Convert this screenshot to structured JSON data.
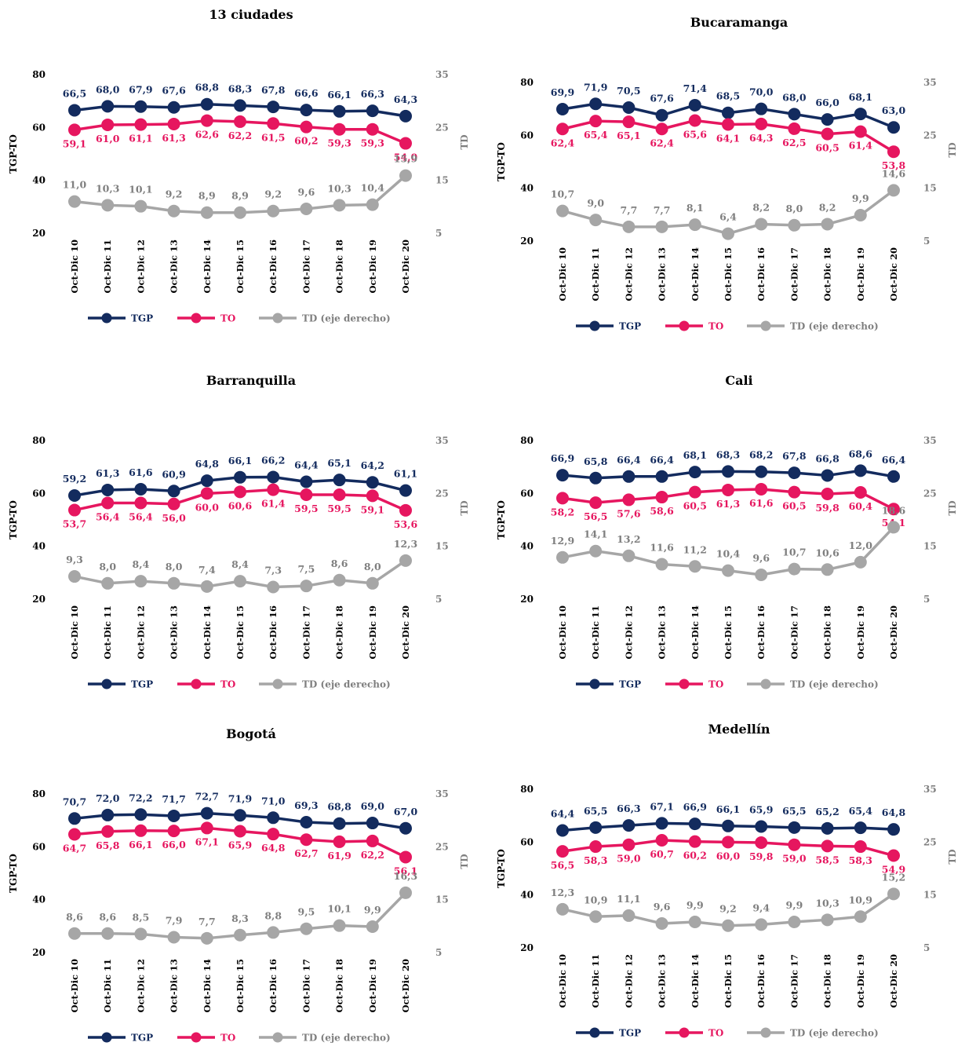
{
  "colors": {
    "TGP": "#132b5e",
    "TO": "#e6165f",
    "TD": "#a6a6a6",
    "TD_text": "#7f7f7f"
  },
  "categories": [
    "Oct-Dic 10",
    "Oct-Dic 11",
    "Oct-Dic 12",
    "Oct-Dic 13",
    "Oct-Dic 14",
    "Oct-Dic 15",
    "Oct-Dic 16",
    "Oct-Dic 17",
    "Oct-Dic 18",
    "Oct-Dic 19",
    "Oct-Dic 20"
  ],
  "legend": {
    "tgp": "TGP",
    "to": "TO",
    "td": "TD (eje derecho)"
  },
  "chart_data": [
    {
      "type": "line",
      "title": "13 ciudades",
      "ylabel_left": "TGP-TO",
      "ylabel_right": "TD",
      "yticks_left": [
        20,
        40,
        60,
        80
      ],
      "yticks_right": [
        5,
        15,
        25,
        35
      ],
      "series": [
        {
          "name": "TGP",
          "values": [
            66.5,
            68.0,
            67.9,
            67.6,
            68.8,
            68.3,
            67.8,
            66.6,
            66.1,
            66.3,
            64.3
          ],
          "labels": [
            "66,5",
            "68,0",
            "67,9",
            "67,6",
            "68,8",
            "68,3",
            "67,8",
            "66,6",
            "66,1",
            "66,3",
            "64,3"
          ]
        },
        {
          "name": "TO",
          "values": [
            59.1,
            61.0,
            61.1,
            61.3,
            62.6,
            62.2,
            61.5,
            60.2,
            59.3,
            59.3,
            54.0
          ],
          "labels": [
            "59,1",
            "61,0",
            "61,1",
            "61,3",
            "62,6",
            "62,2",
            "61,5",
            "60,2",
            "59,3",
            "59,3",
            "54,0"
          ]
        },
        {
          "name": "TD (eje derecho)",
          "values": [
            11.0,
            10.3,
            10.1,
            9.2,
            8.9,
            8.9,
            9.2,
            9.6,
            10.3,
            10.4,
            15.9
          ],
          "labels": [
            "11,0",
            "10,3",
            "10,1",
            "9,2",
            "8,9",
            "8,9",
            "9,2",
            "9,6",
            "10,3",
            "10,4",
            "15,9"
          ]
        }
      ]
    },
    {
      "type": "line",
      "title": "Bucaramanga",
      "ylabel_left": "TGP-TO",
      "ylabel_right": "TD",
      "yticks_left": [
        20,
        40,
        60,
        80
      ],
      "yticks_right": [
        5,
        15,
        25,
        35
      ],
      "series": [
        {
          "name": "TGP",
          "values": [
            69.9,
            71.9,
            70.5,
            67.6,
            71.4,
            68.5,
            70.0,
            68.0,
            66.0,
            68.1,
            63.0
          ],
          "labels": [
            "69,9",
            "71,9",
            "70,5",
            "67,6",
            "71,4",
            "68,5",
            "70,0",
            "68,0",
            "66,0",
            "68,1",
            "63,0"
          ]
        },
        {
          "name": "TO",
          "values": [
            62.4,
            65.4,
            65.1,
            62.4,
            65.6,
            64.1,
            64.3,
            62.5,
            60.5,
            61.4,
            53.8
          ],
          "labels": [
            "62,4",
            "65,4",
            "65,1",
            "62,4",
            "65,6",
            "64,1",
            "64,3",
            "62,5",
            "60,5",
            "61,4",
            "53,8"
          ]
        },
        {
          "name": "TD (eje derecho)",
          "values": [
            10.7,
            9.0,
            7.7,
            7.7,
            8.1,
            6.4,
            8.2,
            8.0,
            8.2,
            9.9,
            14.6
          ],
          "labels": [
            "10,7",
            "9,0",
            "7,7",
            "7,7",
            "8,1",
            "6,4",
            "8,2",
            "8,0",
            "8,2",
            "9,9",
            "14,6"
          ]
        }
      ]
    },
    {
      "type": "line",
      "title": "Barranquilla",
      "ylabel_left": "TGP-TO",
      "ylabel_right": "TD",
      "yticks_left": [
        20,
        40,
        60,
        80
      ],
      "yticks_right": [
        5,
        15,
        25,
        35
      ],
      "series": [
        {
          "name": "TGP",
          "values": [
            59.2,
            61.3,
            61.6,
            60.9,
            64.8,
            66.1,
            66.2,
            64.4,
            65.1,
            64.2,
            61.1
          ],
          "labels": [
            "59,2",
            "61,3",
            "61,6",
            "60,9",
            "64,8",
            "66,1",
            "66,2",
            "64,4",
            "65,1",
            "64,2",
            "61,1"
          ]
        },
        {
          "name": "TO",
          "values": [
            53.7,
            56.4,
            56.4,
            56.0,
            60.0,
            60.6,
            61.4,
            59.5,
            59.5,
            59.1,
            53.6
          ],
          "labels": [
            "53,7",
            "56,4",
            "56,4",
            "56,0",
            "60,0",
            "60,6",
            "61,4",
            "59,5",
            "59,5",
            "59,1",
            "53,6"
          ]
        },
        {
          "name": "TD (eje derecho)",
          "values": [
            9.3,
            8.0,
            8.4,
            8.0,
            7.4,
            8.4,
            7.3,
            7.5,
            8.6,
            8.0,
            12.3
          ],
          "labels": [
            "9,3",
            "8,0",
            "8,4",
            "8,0",
            "7,4",
            "8,4",
            "7,3",
            "7,5",
            "8,6",
            "8,0",
            "12,3"
          ]
        }
      ]
    },
    {
      "type": "line",
      "title": "Cali",
      "ylabel_left": "TGP-TO",
      "ylabel_right": "TD",
      "yticks_left": [
        20,
        40,
        60,
        80
      ],
      "yticks_right": [
        5,
        15,
        25,
        35
      ],
      "series": [
        {
          "name": "TGP",
          "values": [
            66.9,
            65.8,
            66.4,
            66.4,
            68.1,
            68.3,
            68.2,
            67.8,
            66.8,
            68.6,
            66.4
          ],
          "labels": [
            "66,9",
            "65,8",
            "66,4",
            "66,4",
            "68,1",
            "68,3",
            "68,2",
            "67,8",
            "66,8",
            "68,6",
            "66,4"
          ]
        },
        {
          "name": "TO",
          "values": [
            58.2,
            56.5,
            57.6,
            58.6,
            60.5,
            61.3,
            61.6,
            60.5,
            59.8,
            60.4,
            54.1
          ],
          "labels": [
            "58,2",
            "56,5",
            "57,6",
            "58,6",
            "60,5",
            "61,3",
            "61,6",
            "60,5",
            "59,8",
            "60,4",
            "54,1"
          ]
        },
        {
          "name": "TD (eje derecho)",
          "values": [
            12.9,
            14.1,
            13.2,
            11.6,
            11.2,
            10.4,
            9.6,
            10.7,
            10.6,
            12.0,
            18.6
          ],
          "labels": [
            "12,9",
            "14,1",
            "13,2",
            "11,6",
            "11,2",
            "10,4",
            "9,6",
            "10,7",
            "10,6",
            "12,0",
            "18,6"
          ]
        }
      ]
    },
    {
      "type": "line",
      "title": "Bogotá",
      "ylabel_left": "TGP-TO",
      "ylabel_right": "TD",
      "yticks_left": [
        20,
        40,
        60,
        80
      ],
      "yticks_right": [
        5,
        15,
        25,
        35
      ],
      "series": [
        {
          "name": "TGP",
          "values": [
            70.7,
            72.0,
            72.2,
            71.7,
            72.7,
            71.9,
            71.0,
            69.3,
            68.8,
            69.0,
            67.0
          ],
          "labels": [
            "70,7",
            "72,0",
            "72,2",
            "71,7",
            "72,7",
            "71,9",
            "71,0",
            "69,3",
            "68,8",
            "69,0",
            "67,0"
          ]
        },
        {
          "name": "TO",
          "values": [
            64.7,
            65.8,
            66.1,
            66.0,
            67.1,
            65.9,
            64.8,
            62.7,
            61.9,
            62.2,
            56.1
          ],
          "labels": [
            "64,7",
            "65,8",
            "66,1",
            "66,0",
            "67,1",
            "65,9",
            "64,8",
            "62,7",
            "61,9",
            "62,2",
            "56,1"
          ]
        },
        {
          "name": "TD (eje derecho)",
          "values": [
            8.6,
            8.6,
            8.5,
            7.9,
            7.7,
            8.3,
            8.8,
            9.5,
            10.1,
            9.9,
            16.3
          ],
          "labels": [
            "8,6",
            "8,6",
            "8,5",
            "7,9",
            "7,7",
            "8,3",
            "8,8",
            "9,5",
            "10,1",
            "9,9",
            "16,3"
          ]
        }
      ]
    },
    {
      "type": "line",
      "title": "Medellín",
      "ylabel_left": "TGP-TO",
      "ylabel_right": "TD",
      "yticks_left": [
        20,
        40,
        60,
        80
      ],
      "yticks_right": [
        5,
        15,
        25,
        35
      ],
      "series": [
        {
          "name": "TGP",
          "values": [
            64.4,
            65.5,
            66.3,
            67.1,
            66.9,
            66.1,
            65.9,
            65.5,
            65.2,
            65.4,
            64.8
          ],
          "labels": [
            "64,4",
            "65,5",
            "66,3",
            "67,1",
            "66,9",
            "66,1",
            "65,9",
            "65,5",
            "65,2",
            "65,4",
            "64,8"
          ]
        },
        {
          "name": "TO",
          "values": [
            56.5,
            58.3,
            59.0,
            60.7,
            60.2,
            60.0,
            59.8,
            59.0,
            58.5,
            58.3,
            54.9
          ],
          "labels": [
            "56,5",
            "58,3",
            "59,0",
            "60,7",
            "60,2",
            "60,0",
            "59,8",
            "59,0",
            "58,5",
            "58,3",
            "54,9"
          ]
        },
        {
          "name": "TD (eje derecho)",
          "values": [
            12.3,
            10.9,
            11.1,
            9.6,
            9.9,
            9.2,
            9.4,
            9.9,
            10.3,
            10.9,
            15.2
          ],
          "labels": [
            "12,3",
            "10,9",
            "11,1",
            "9,6",
            "9,9",
            "9,2",
            "9,4",
            "9,9",
            "10,3",
            "10,9",
            "15,2"
          ]
        }
      ]
    }
  ]
}
